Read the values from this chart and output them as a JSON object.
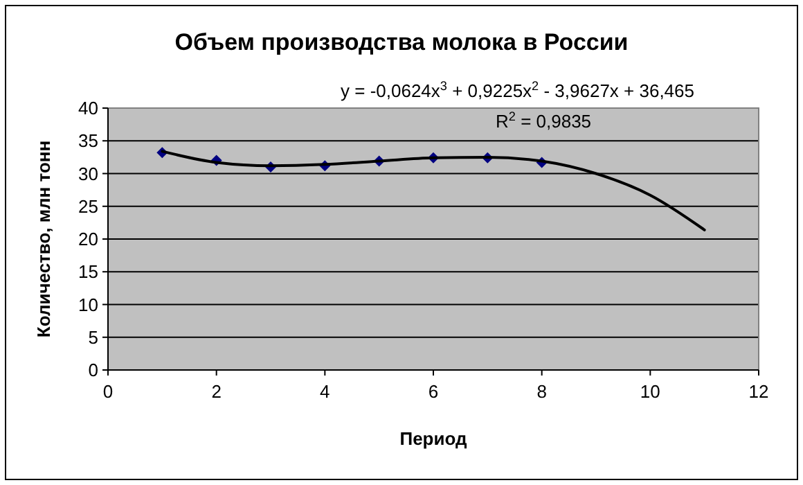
{
  "chart_data": {
    "type": "scatter",
    "title": "Объем производства молока в России",
    "xlabel": "Период",
    "ylabel": "Количество, млн тонн",
    "xlim": [
      0,
      12
    ],
    "xticks": [
      0,
      2,
      4,
      6,
      8,
      10,
      12
    ],
    "ylim": [
      0,
      40
    ],
    "yticks": [
      0,
      5,
      10,
      15,
      20,
      25,
      30,
      35,
      40
    ],
    "grid": "y",
    "series": [
      {
        "color": "#000080",
        "marker": "diamond",
        "x": [
          1,
          2,
          3,
          4,
          5,
          6,
          7,
          8
        ],
        "values": [
          33.2,
          32,
          31,
          31.2,
          31.9,
          32.4,
          32.4,
          31.7
        ]
      },
      {
        "type": "line",
        "color": "#000000",
        "x": [
          1,
          2,
          3,
          4,
          5,
          6,
          7,
          8,
          9,
          10,
          11
        ],
        "values": [
          33.4,
          31.7,
          31.2,
          31.4,
          31.9,
          32.4,
          32.5,
          31.9,
          30,
          26.7,
          21.4
        ],
        "line_style": "solid",
        "marker": "none"
      }
    ],
    "annotations": [
      "y = -0,0624x$^{3}$ + 0,9225x$^{2}$ - 3,9627x + 36,465",
      "R$^{2}$ = 0,9835"
    ]
  }
}
